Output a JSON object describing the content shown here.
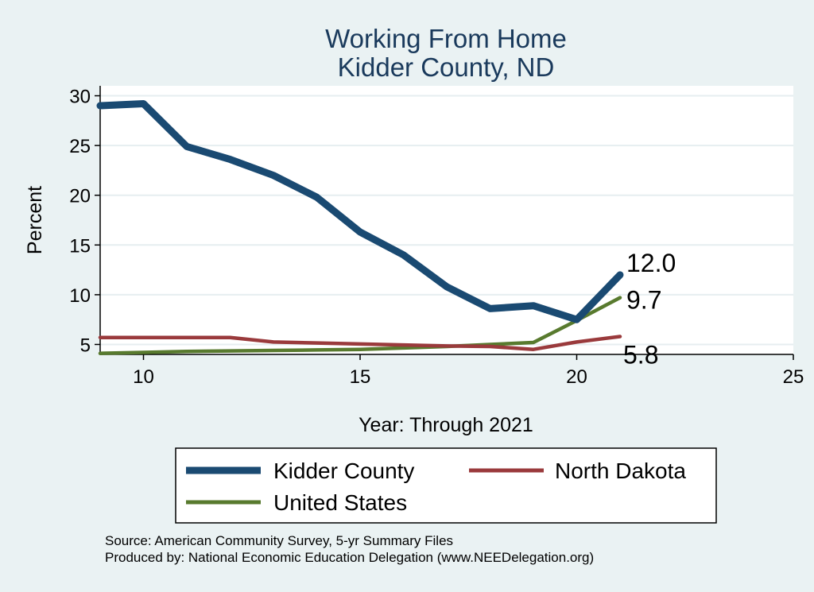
{
  "chart_data": {
    "type": "line",
    "title": [
      "Working From Home",
      "Kidder County, ND"
    ],
    "xlabel": "Year: Through 2021",
    "ylabel": "Percent",
    "xlim": [
      9,
      25
    ],
    "ylim": [
      4,
      31
    ],
    "xticks": [
      10,
      15,
      20,
      25
    ],
    "yticks": [
      5,
      10,
      15,
      20,
      25,
      30
    ],
    "grid": true,
    "legend_position": "bottom",
    "series": [
      {
        "name": "Kidder County",
        "color": "#1a4a72",
        "x": [
          9,
          10,
          11,
          12,
          13,
          14,
          15,
          16,
          17,
          18,
          19,
          20,
          21
        ],
        "y": [
          29.0,
          29.2,
          24.9,
          23.6,
          22.0,
          19.8,
          16.3,
          14.0,
          10.8,
          8.6,
          8.9,
          7.5,
          12.0
        ],
        "end_label": "12.0"
      },
      {
        "name": "North Dakota",
        "color": "#9a3a3c",
        "x": [
          9,
          10,
          11,
          12,
          13,
          14,
          15,
          16,
          17,
          18,
          19,
          20,
          21
        ],
        "y": [
          5.7,
          5.7,
          5.7,
          5.7,
          5.25,
          5.15,
          5.05,
          4.95,
          4.85,
          4.8,
          4.5,
          5.25,
          5.8
        ],
        "end_label": "5.8"
      },
      {
        "name": "United States",
        "color": "#587a2e",
        "x": [
          9,
          10,
          11,
          12,
          13,
          14,
          15,
          16,
          17,
          18,
          19,
          20,
          21
        ],
        "y": [
          4.1,
          4.2,
          4.3,
          4.35,
          4.4,
          4.45,
          4.5,
          4.65,
          4.8,
          5.0,
          5.2,
          7.4,
          9.7
        ],
        "end_label": "9.7"
      }
    ]
  },
  "source": {
    "line1": "Source: American Community Survey, 5-yr Summary Files",
    "line2": "Produced by: National Economic Education Delegation (www.NEEDelegation.org)"
  }
}
